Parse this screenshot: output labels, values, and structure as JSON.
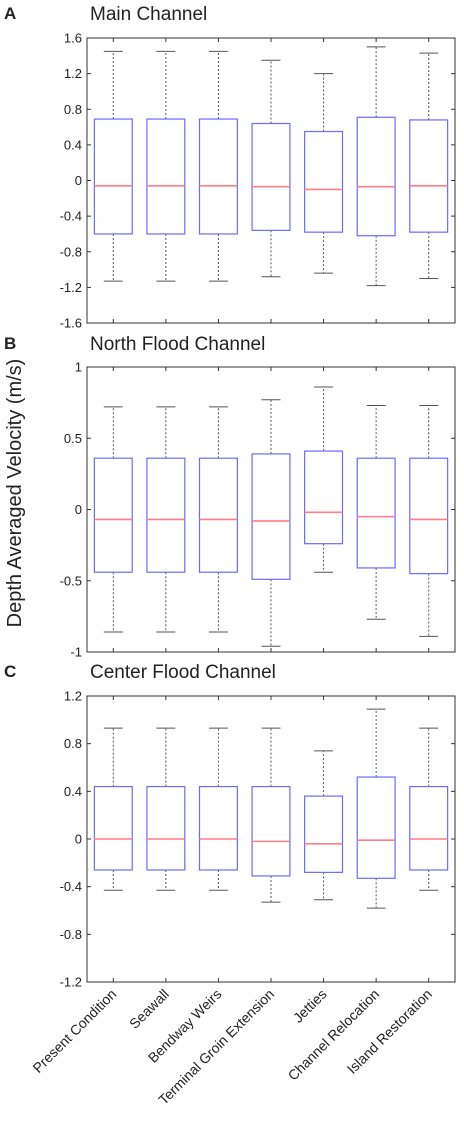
{
  "ylabel": "Depth Averaged Velocity (m/s)",
  "colors": {
    "box": "#6b6bff",
    "median": "#ff7f86",
    "whisker": "#555555",
    "axis": "#333333",
    "text": "#222222"
  },
  "chart_data": [
    {
      "panel_letter": "A",
      "title": "Main Channel",
      "type": "box",
      "ylim": [
        -1.6,
        1.6
      ],
      "yticks": [
        1.6,
        1.2,
        0.8,
        0.4,
        0,
        -0.4,
        -0.8,
        -1.2,
        -1.6
      ],
      "ytick_labels": [
        "1.6",
        "1.2",
        "0.8",
        "0.4",
        "0",
        "-0.4",
        "-0.8",
        "-1.2",
        "-1.6"
      ],
      "categories": [
        "Present Condition",
        "Seawall",
        "Bendway Weirs",
        "Terminal Groin Extension",
        "Jetties",
        "Channel Relocation",
        "Island Restoration"
      ],
      "boxes": [
        {
          "whisker_low": -1.13,
          "q1": -0.6,
          "median": -0.06,
          "q3": 0.69,
          "whisker_high": 1.45
        },
        {
          "whisker_low": -1.13,
          "q1": -0.6,
          "median": -0.06,
          "q3": 0.69,
          "whisker_high": 1.45
        },
        {
          "whisker_low": -1.13,
          "q1": -0.6,
          "median": -0.06,
          "q3": 0.69,
          "whisker_high": 1.45
        },
        {
          "whisker_low": -1.08,
          "q1": -0.56,
          "median": -0.07,
          "q3": 0.64,
          "whisker_high": 1.35
        },
        {
          "whisker_low": -1.04,
          "q1": -0.58,
          "median": -0.1,
          "q3": 0.55,
          "whisker_high": 1.2
        },
        {
          "whisker_low": -1.18,
          "q1": -0.62,
          "median": -0.07,
          "q3": 0.71,
          "whisker_high": 1.5
        },
        {
          "whisker_low": -1.1,
          "q1": -0.58,
          "median": -0.06,
          "q3": 0.68,
          "whisker_high": 1.43
        }
      ]
    },
    {
      "panel_letter": "B",
      "title": "North Flood Channel",
      "type": "box",
      "ylim": [
        -1,
        1
      ],
      "yticks": [
        1,
        0.5,
        0,
        -0.5,
        -1
      ],
      "ytick_labels": [
        "1",
        "0.5",
        "0",
        "-0.5",
        "-1"
      ],
      "categories": [
        "Present Condition",
        "Seawall",
        "Bendway Weirs",
        "Terminal Groin Extension",
        "Jetties",
        "Channel Relocation",
        "Island Restoration"
      ],
      "boxes": [
        {
          "whisker_low": -0.86,
          "q1": -0.44,
          "median": -0.07,
          "q3": 0.36,
          "whisker_high": 0.72
        },
        {
          "whisker_low": -0.86,
          "q1": -0.44,
          "median": -0.07,
          "q3": 0.36,
          "whisker_high": 0.72
        },
        {
          "whisker_low": -0.86,
          "q1": -0.44,
          "median": -0.07,
          "q3": 0.36,
          "whisker_high": 0.72
        },
        {
          "whisker_low": -0.96,
          "q1": -0.49,
          "median": -0.08,
          "q3": 0.39,
          "whisker_high": 0.77
        },
        {
          "whisker_low": -0.44,
          "q1": -0.24,
          "median": -0.02,
          "q3": 0.41,
          "whisker_high": 0.86
        },
        {
          "whisker_low": -0.77,
          "q1": -0.41,
          "median": -0.05,
          "q3": 0.36,
          "whisker_high": 0.73
        },
        {
          "whisker_low": -0.89,
          "q1": -0.45,
          "median": -0.07,
          "q3": 0.36,
          "whisker_high": 0.73
        }
      ]
    },
    {
      "panel_letter": "C",
      "title": "Center Flood Channel",
      "type": "box",
      "ylim": [
        -1.2,
        1.2
      ],
      "yticks": [
        1.2,
        0.8,
        0.4,
        0,
        -0.4,
        -0.8,
        -1.2
      ],
      "ytick_labels": [
        "1.2",
        "0.8",
        "0.4",
        "0",
        "-0.4",
        "-0.8",
        "-1.2"
      ],
      "categories": [
        "Present Condition",
        "Seawall",
        "Bendway Weirs",
        "Terminal Groin Extension",
        "Jetties",
        "Channel Relocation",
        "Island Restoration"
      ],
      "xtick_labels": [
        "Present Condition",
        "Seawall",
        "Bendway Weirs",
        "Terminal Groin Extension",
        "Jetties",
        "Channel Relocation",
        "Island Restoration"
      ],
      "boxes": [
        {
          "whisker_low": -0.43,
          "q1": -0.26,
          "median": 0.0,
          "q3": 0.44,
          "whisker_high": 0.93
        },
        {
          "whisker_low": -0.43,
          "q1": -0.26,
          "median": 0.0,
          "q3": 0.44,
          "whisker_high": 0.93
        },
        {
          "whisker_low": -0.43,
          "q1": -0.26,
          "median": 0.0,
          "q3": 0.44,
          "whisker_high": 0.93
        },
        {
          "whisker_low": -0.53,
          "q1": -0.31,
          "median": -0.02,
          "q3": 0.44,
          "whisker_high": 0.93
        },
        {
          "whisker_low": -0.51,
          "q1": -0.28,
          "median": -0.04,
          "q3": 0.36,
          "whisker_high": 0.74
        },
        {
          "whisker_low": -0.58,
          "q1": -0.33,
          "median": -0.01,
          "q3": 0.52,
          "whisker_high": 1.09
        },
        {
          "whisker_low": -0.43,
          "q1": -0.26,
          "median": 0.0,
          "q3": 0.44,
          "whisker_high": 0.93
        }
      ]
    }
  ]
}
